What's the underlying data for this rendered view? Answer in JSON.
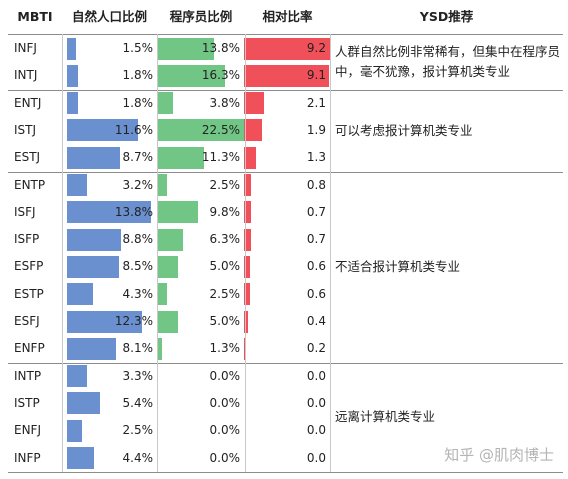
{
  "headers": {
    "mbti": "MBTI",
    "population": "自然人口比例",
    "programmer": "程序员比例",
    "ratio": "相对比率",
    "ysd": "YSD推荐"
  },
  "watermark": "知乎 @肌肉博士",
  "chart_data": {
    "type": "table",
    "columns": [
      "MBTI",
      "自然人口比例",
      "程序员比例",
      "相对比率",
      "YSD推荐"
    ],
    "rows": [
      {
        "type": "INFJ",
        "population": "1.5%",
        "programmer": "13.8%",
        "ratio": "9.2",
        "p": 1.5,
        "g": 13.8,
        "r": 9.2
      },
      {
        "type": "INTJ",
        "population": "1.8%",
        "programmer": "16.3%",
        "ratio": "9.1",
        "p": 1.8,
        "g": 16.3,
        "r": 9.1
      },
      {
        "type": "ENTJ",
        "population": "1.8%",
        "programmer": "3.8%",
        "ratio": "2.1",
        "p": 1.8,
        "g": 3.8,
        "r": 2.1
      },
      {
        "type": "ISTJ",
        "population": "11.6%",
        "programmer": "22.5%",
        "ratio": "1.9",
        "p": 11.6,
        "g": 22.5,
        "r": 1.9
      },
      {
        "type": "ESTJ",
        "population": "8.7%",
        "programmer": "11.3%",
        "ratio": "1.3",
        "p": 8.7,
        "g": 11.3,
        "r": 1.3
      },
      {
        "type": "ENTP",
        "population": "3.2%",
        "programmer": "2.5%",
        "ratio": "0.8",
        "p": 3.2,
        "g": 2.5,
        "r": 0.8
      },
      {
        "type": "ISFJ",
        "population": "13.8%",
        "programmer": "9.8%",
        "ratio": "0.7",
        "p": 13.8,
        "g": 9.8,
        "r": 0.7
      },
      {
        "type": "ISFP",
        "population": "8.8%",
        "programmer": "6.3%",
        "ratio": "0.7",
        "p": 8.8,
        "g": 6.3,
        "r": 0.7
      },
      {
        "type": "ESFP",
        "population": "8.5%",
        "programmer": "5.0%",
        "ratio": "0.6",
        "p": 8.5,
        "g": 5.0,
        "r": 0.6
      },
      {
        "type": "ESTP",
        "population": "4.3%",
        "programmer": "2.5%",
        "ratio": "0.6",
        "p": 4.3,
        "g": 2.5,
        "r": 0.6
      },
      {
        "type": "ESFJ",
        "population": "12.3%",
        "programmer": "5.0%",
        "ratio": "0.4",
        "p": 12.3,
        "g": 5.0,
        "r": 0.4
      },
      {
        "type": "ENFP",
        "population": "8.1%",
        "programmer": "1.3%",
        "ratio": "0.2",
        "p": 8.1,
        "g": 1.3,
        "r": 0.2
      },
      {
        "type": "INTP",
        "population": "3.3%",
        "programmer": "0.0%",
        "ratio": "0.0",
        "p": 3.3,
        "g": 0.0,
        "r": 0.0
      },
      {
        "type": "ISTP",
        "population": "5.4%",
        "programmer": "0.0%",
        "ratio": "0.0",
        "p": 5.4,
        "g": 0.0,
        "r": 0.0
      },
      {
        "type": "ENFJ",
        "population": "2.5%",
        "programmer": "0.0%",
        "ratio": "0.0",
        "p": 2.5,
        "g": 0.0,
        "r": 0.0
      },
      {
        "type": "INFP",
        "population": "4.4%",
        "programmer": "0.0%",
        "ratio": "0.0",
        "p": 4.4,
        "g": 0.0,
        "r": 0.0
      }
    ],
    "recommendations": [
      {
        "text": "人群自然比例非常稀有，但集中在程序员中，毫不犹豫，报计算机类专业",
        "rows": [
          0,
          1
        ]
      },
      {
        "text": "可以考虑报计算机类专业",
        "rows": [
          2,
          4
        ]
      },
      {
        "text": "不适合报计算机类专业",
        "rows": [
          5,
          11
        ]
      },
      {
        "text": "远离计算机类专业",
        "rows": [
          12,
          15
        ]
      }
    ],
    "colors": {
      "population": "#6a90cf",
      "programmer": "#72c685",
      "ratio": "#f0505a"
    }
  }
}
